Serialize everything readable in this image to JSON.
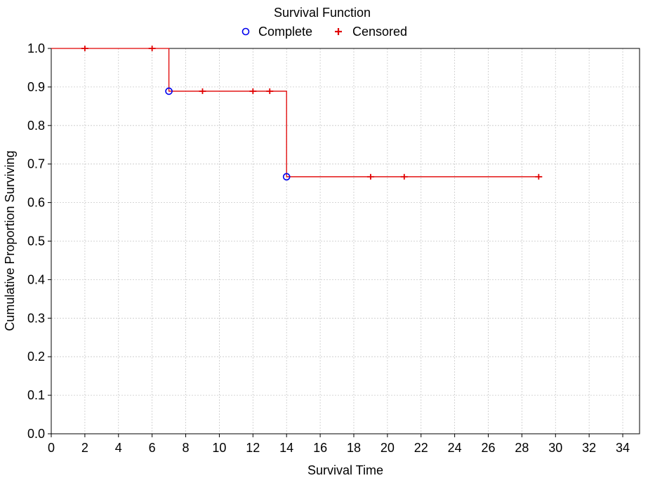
{
  "chart_data": {
    "type": "line",
    "title": "Survival Function",
    "xlabel": "Survival Time",
    "ylabel": "Cumulative Proportion Surviving",
    "xlim": [
      0,
      35
    ],
    "ylim": [
      0.0,
      1.0
    ],
    "xticks": [
      0,
      2,
      4,
      6,
      8,
      10,
      12,
      14,
      16,
      18,
      20,
      22,
      24,
      26,
      28,
      30,
      32,
      34
    ],
    "yticks": [
      0.0,
      0.1,
      0.2,
      0.3,
      0.4,
      0.5,
      0.6,
      0.7,
      0.8,
      0.9,
      1.0
    ],
    "xtick_labels": [
      "0",
      "2",
      "4",
      "6",
      "8",
      "10",
      "12",
      "14",
      "16",
      "18",
      "20",
      "22",
      "24",
      "26",
      "28",
      "30",
      "32",
      "34"
    ],
    "ytick_labels": [
      "0.0",
      "0.1",
      "0.2",
      "0.3",
      "0.4",
      "0.5",
      "0.6",
      "0.7",
      "0.8",
      "0.9",
      "1.0"
    ],
    "grid": true,
    "legend_position": "top-center",
    "step_line": {
      "color": "#e00000",
      "points": [
        [
          0,
          1.0
        ],
        [
          7,
          1.0
        ],
        [
          7,
          0.889
        ],
        [
          14,
          0.889
        ],
        [
          14,
          0.667
        ],
        [
          29,
          0.667
        ]
      ]
    },
    "series": [
      {
        "name": "Complete",
        "marker": "circle",
        "color": "#0000ee",
        "points": [
          [
            7,
            0.889
          ],
          [
            14,
            0.667
          ]
        ]
      },
      {
        "name": "Censored",
        "marker": "plus",
        "color": "#e00000",
        "points": [
          [
            2,
            1.0
          ],
          [
            6,
            1.0
          ],
          [
            9,
            0.889
          ],
          [
            12,
            0.889
          ],
          [
            13,
            0.889
          ],
          [
            19,
            0.667
          ],
          [
            21,
            0.667
          ],
          [
            29,
            0.667
          ]
        ]
      }
    ]
  }
}
